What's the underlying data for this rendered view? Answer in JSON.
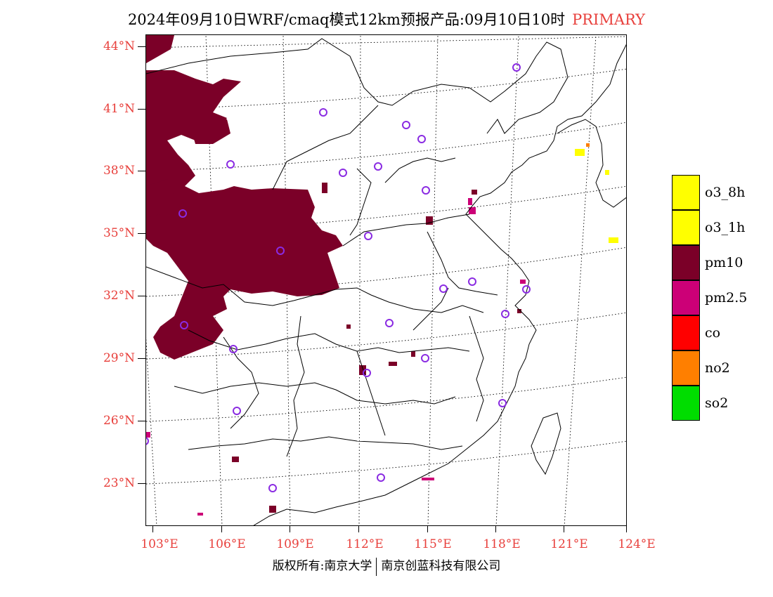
{
  "header": {
    "title": "2024年09月10日WRF/cmaq模式12km预报产品:09月10日10时",
    "tag": "PRIMARY"
  },
  "axes": {
    "latitude_labels": [
      "44°N",
      "41°N",
      "38°N",
      "35°N",
      "32°N",
      "29°N",
      "26°N",
      "23°N"
    ],
    "longitude_labels": [
      "103°E",
      "106°E",
      "109°E",
      "112°E",
      "115°E",
      "118°E",
      "121°E",
      "124°E"
    ]
  },
  "legend": {
    "items": [
      {
        "label": "o3_8h",
        "color": "#ffff00"
      },
      {
        "label": "o3_1h",
        "color": "#ffff00"
      },
      {
        "label": "pm10",
        "color": "#7b0028"
      },
      {
        "label": "pm2.5",
        "color": "#cc0077"
      },
      {
        "label": "co",
        "color": "#ff0000"
      },
      {
        "label": "no2",
        "color": "#ff7f00"
      },
      {
        "label": "so2",
        "color": "#00dd00"
      }
    ]
  },
  "footer": {
    "left": "版权所有:南京大学",
    "right": "南京创蓝科技有限公司"
  },
  "colors": {
    "pm10": "#7b0028",
    "pm25": "#cc0077",
    "o3": "#ffff00",
    "no2": "#ff7f00",
    "station_marker": "#8a2be2",
    "axis_label": "#e8403c"
  }
}
